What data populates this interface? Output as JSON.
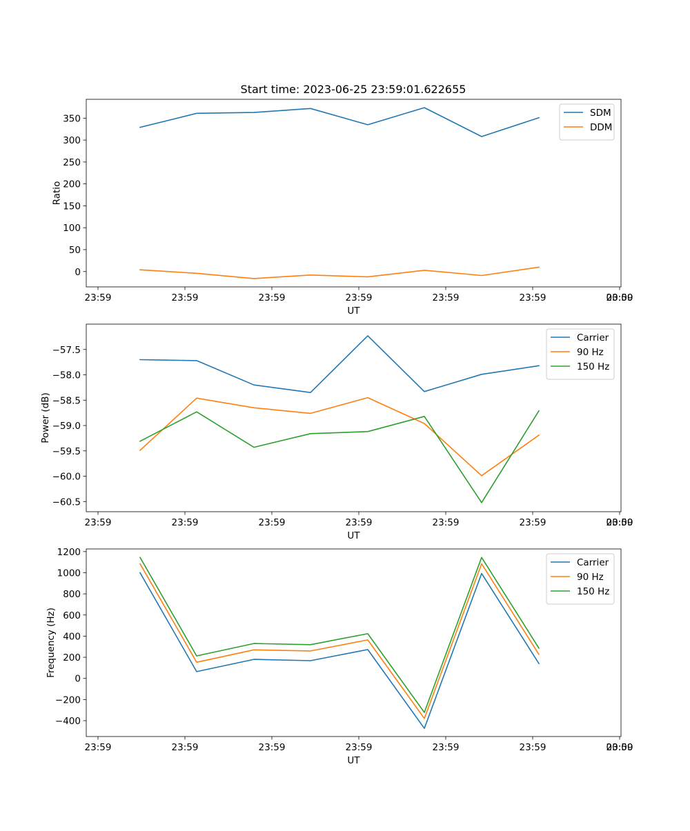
{
  "figure": {
    "title": "Start time: 2023-06-25 23:59:01.622655"
  },
  "chart_data": [
    {
      "type": "line",
      "xlabel": "UT",
      "ylabel": "Ratio",
      "x_tick_labels": [
        "23:59",
        "23:59",
        "23:59",
        "23:59",
        "23:59",
        "23:59",
        "23:59",
        "00:00"
      ],
      "y_ticks": [
        0,
        50,
        100,
        150,
        200,
        250,
        300,
        350
      ],
      "y_tick_labels": [
        "0",
        "50",
        "100",
        "150",
        "200",
        "250",
        "300",
        "350"
      ],
      "ylim": [
        -35,
        393
      ],
      "legend_position": "top-right",
      "series": [
        {
          "name": "SDM",
          "color": "#1f77b4",
          "values": [
            329,
            361,
            363,
            372,
            335,
            374,
            308,
            351
          ]
        },
        {
          "name": "DDM",
          "color": "#ff7f0e",
          "values": [
            4,
            -4,
            -16,
            -8,
            -12,
            3,
            -9,
            10
          ]
        }
      ]
    },
    {
      "type": "line",
      "xlabel": "UT",
      "ylabel": "Power (dB)",
      "x_tick_labels": [
        "23:59",
        "23:59",
        "23:59",
        "23:59",
        "23:59",
        "23:59",
        "23:59",
        "00:00"
      ],
      "y_ticks": [
        -60.5,
        -60.0,
        -59.5,
        -59.0,
        -58.5,
        -58.0,
        -57.5
      ],
      "y_tick_labels": [
        "−60.5",
        "−60.0",
        "−59.5",
        "−59.0",
        "−58.5",
        "−58.0",
        "−57.5"
      ],
      "ylim": [
        -60.7,
        -57.0
      ],
      "legend_position": "top-right",
      "series": [
        {
          "name": "Carrier",
          "color": "#1f77b4",
          "values": [
            -57.7,
            -57.72,
            -58.2,
            -58.35,
            -57.23,
            -58.33,
            -57.99,
            -57.82
          ]
        },
        {
          "name": "90 Hz",
          "color": "#ff7f0e",
          "values": [
            -59.49,
            -58.46,
            -58.65,
            -58.76,
            -58.45,
            -58.96,
            -59.99,
            -59.19
          ]
        },
        {
          "name": "150 Hz",
          "color": "#2ca02c",
          "values": [
            -59.31,
            -58.73,
            -59.43,
            -59.16,
            -59.12,
            -58.82,
            -60.52,
            -58.71
          ]
        }
      ]
    },
    {
      "type": "line",
      "xlabel": "UT",
      "ylabel": "Frequency (Hz)",
      "x_tick_labels": [
        "23:59",
        "23:59",
        "23:59",
        "23:59",
        "23:59",
        "23:59",
        "23:59",
        "00:00"
      ],
      "y_ticks": [
        -400,
        -200,
        0,
        200,
        400,
        600,
        800,
        1000,
        1200
      ],
      "y_tick_labels": [
        "−400",
        "−200",
        "0",
        "200",
        "400",
        "600",
        "800",
        "1000",
        "1200"
      ],
      "ylim": [
        -550,
        1225
      ],
      "legend_position": "top-right",
      "series": [
        {
          "name": "Carrier",
          "color": "#1f77b4",
          "values": [
            1000,
            64,
            180,
            168,
            273,
            -473,
            993,
            141
          ]
        },
        {
          "name": "90 Hz",
          "color": "#ff7f0e",
          "values": [
            1085,
            153,
            270,
            260,
            364,
            -379,
            1085,
            227
          ]
        },
        {
          "name": "150 Hz",
          "color": "#2ca02c",
          "values": [
            1145,
            213,
            330,
            319,
            423,
            -322,
            1145,
            286
          ]
        }
      ]
    }
  ]
}
